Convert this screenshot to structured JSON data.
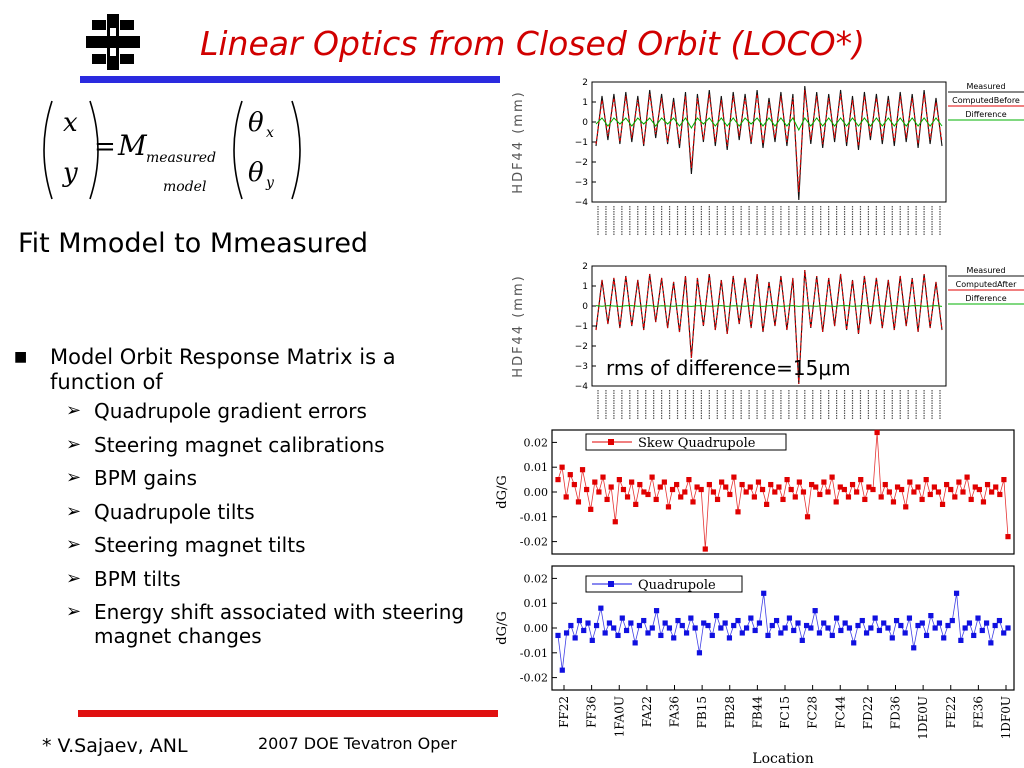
{
  "slide": {
    "title": "Linear Optics from Closed Orbit (LOCO*)",
    "equation": {
      "lhs_top": "x",
      "lhs_bottom": "y",
      "equals": "=",
      "matrix_symbol": "M",
      "subscript_top": "measured",
      "subscript_bottom": "model",
      "theta": "θ",
      "sub_x": "x",
      "sub_y": "y"
    },
    "fit_text": "Fit Mmodel to Mmeasured",
    "main_bullet": "Model Orbit Response Matrix is a function of",
    "sub_bullets": [
      "Quadrupole gradient errors",
      "Steering magnet calibrations",
      "BPM gains",
      "Quadrupole tilts",
      "Steering magnet tilts",
      "BPM tilts",
      "Energy shift associated with steering magnet changes"
    ],
    "footer_author": "* V.Sajaev, ANL",
    "footer_conference": "2007 DOE Tevatron Oper",
    "rms_text": "rms of difference=15μm",
    "colors": {
      "title": "#d00000",
      "top_rule": "#2a2adf",
      "bottom_rule": "#e01010",
      "red_series": "#e00000",
      "blue_series": "#1010e0",
      "green_series": "#00b000"
    }
  },
  "chart_data": [
    {
      "type": "line",
      "ylabel": "HDF44 (mm)",
      "ylim": [
        -4,
        2
      ],
      "yticks": [
        "2",
        "1",
        "0",
        "−1",
        "−2",
        "−3",
        "−4"
      ],
      "legend": [
        "Measured",
        "ComputedBefore",
        "Difference"
      ],
      "legend_position": "right",
      "series": [
        {
          "name": "Measured",
          "values": [
            -1.2,
            1.3,
            -0.9,
            1.4,
            -1.1,
            1.5,
            -1.0,
            1.3,
            -1.2,
            1.6,
            -0.8,
            1.4,
            -1.1,
            1.2,
            -1.3,
            1.5,
            -2.6,
            1.4,
            -1.0,
            1.6,
            -1.2,
            1.3,
            -1.4,
            1.5,
            -0.9,
            1.4,
            -1.1,
            1.6,
            -1.3,
            1.2,
            -1.0,
            1.5,
            -1.2,
            1.4,
            -3.9,
            1.8,
            -1.1,
            1.5,
            -1.3,
            1.4,
            -1.0,
            1.6,
            -1.2,
            1.3,
            -1.4,
            1.5,
            -0.9,
            1.4,
            -1.1,
            1.3,
            -1.2,
            1.5,
            -1.0,
            1.4,
            -1.3,
            1.6,
            -1.1,
            1.2,
            -1.2
          ]
        },
        {
          "name": "ComputedBefore",
          "values": [
            -1.1,
            1.1,
            -0.7,
            1.2,
            -1.0,
            1.3,
            -0.8,
            1.1,
            -1.1,
            1.4,
            -0.6,
            1.2,
            -1.0,
            1.0,
            -1.1,
            1.3,
            -2.3,
            1.2,
            -0.9,
            1.4,
            -1.0,
            1.1,
            -1.2,
            1.3,
            -0.7,
            1.2,
            -1.0,
            1.4,
            -1.1,
            1.0,
            -0.8,
            1.3,
            -1.0,
            1.2,
            -3.5,
            1.6,
            -0.9,
            1.3,
            -1.1,
            1.2,
            -0.8,
            1.4,
            -1.0,
            1.1,
            -1.2,
            1.3,
            -0.7,
            1.2,
            -0.9,
            1.1,
            -1.0,
            1.3,
            -0.8,
            1.2,
            -1.1,
            1.4,
            -0.9,
            1.0,
            -1.0
          ]
        },
        {
          "name": "Difference",
          "values": [
            -0.1,
            0.2,
            -0.2,
            0.2,
            -0.1,
            0.2,
            -0.2,
            0.2,
            -0.1,
            0.2,
            -0.2,
            0.2,
            -0.1,
            0.2,
            -0.2,
            0.2,
            -0.3,
            0.2,
            -0.1,
            0.2,
            -0.2,
            0.2,
            -0.2,
            0.2,
            -0.2,
            0.2,
            -0.1,
            0.2,
            -0.2,
            0.2,
            -0.2,
            0.2,
            -0.2,
            0.2,
            -0.4,
            0.2,
            -0.2,
            0.2,
            -0.2,
            0.2,
            -0.2,
            0.2,
            -0.2,
            0.2,
            -0.2,
            0.2,
            -0.2,
            0.2,
            -0.2,
            0.2,
            -0.2,
            0.2,
            -0.2,
            0.2,
            -0.2,
            0.2,
            -0.2,
            0.2,
            -0.2
          ]
        }
      ]
    },
    {
      "type": "line",
      "ylabel": "HDF44 (mm)",
      "ylim": [
        -4,
        2
      ],
      "yticks": [
        "2",
        "1",
        "0",
        "−1",
        "−2",
        "−3",
        "−4"
      ],
      "legend": [
        "Measured",
        "ComputedAfter",
        "Difference"
      ],
      "legend_position": "right",
      "series": [
        {
          "name": "Measured",
          "values": [
            -1.2,
            1.3,
            -0.9,
            1.4,
            -1.1,
            1.5,
            -1.0,
            1.3,
            -1.2,
            1.6,
            -0.8,
            1.4,
            -1.1,
            1.2,
            -1.3,
            1.5,
            -2.6,
            1.4,
            -1.0,
            1.6,
            -1.2,
            1.3,
            -1.4,
            1.5,
            -0.9,
            1.4,
            -1.1,
            1.6,
            -1.3,
            1.2,
            -1.0,
            1.5,
            -1.2,
            1.4,
            -3.9,
            1.8,
            -1.1,
            1.5,
            -1.3,
            1.4,
            -1.0,
            1.6,
            -1.2,
            1.3,
            -1.4,
            1.5,
            -0.9,
            1.4,
            -1.1,
            1.3,
            -1.2,
            1.5,
            -1.0,
            1.4,
            -1.3,
            1.6,
            -1.1,
            1.2,
            -1.2
          ]
        },
        {
          "name": "ComputedAfter",
          "values": [
            -1.2,
            1.3,
            -0.9,
            1.4,
            -1.1,
            1.5,
            -1.0,
            1.3,
            -1.2,
            1.6,
            -0.8,
            1.4,
            -1.1,
            1.2,
            -1.3,
            1.5,
            -2.6,
            1.4,
            -1.0,
            1.6,
            -1.2,
            1.3,
            -1.4,
            1.5,
            -0.9,
            1.4,
            -1.1,
            1.6,
            -1.3,
            1.2,
            -1.0,
            1.5,
            -1.2,
            1.4,
            -3.9,
            1.8,
            -1.1,
            1.5,
            -1.3,
            1.4,
            -1.0,
            1.6,
            -1.2,
            1.3,
            -1.4,
            1.5,
            -0.9,
            1.4,
            -1.1,
            1.3,
            -1.2,
            1.5,
            -1.0,
            1.4,
            -1.3,
            1.6,
            -1.1,
            1.2,
            -1.2
          ]
        },
        {
          "name": "Difference",
          "values": [
            0.02,
            -0.01,
            0.02,
            0.0,
            -0.02,
            0.01,
            0.02,
            -0.01,
            0.0,
            0.02,
            -0.02,
            0.01,
            0.0,
            -0.01,
            0.02,
            0.0,
            -0.02,
            0.01,
            0.02,
            -0.01,
            0.0,
            0.02,
            -0.02,
            0.01,
            0.0,
            -0.01,
            0.02,
            0.0,
            -0.02,
            0.01,
            0.02,
            -0.01,
            0.0,
            0.02,
            -0.02,
            0.01,
            0.0,
            -0.01,
            0.02,
            0.0,
            -0.02,
            0.01,
            0.02,
            -0.01,
            0.0,
            0.02,
            -0.02,
            0.01,
            0.0,
            -0.01,
            0.02,
            0.0,
            -0.02,
            0.01,
            0.02,
            -0.01,
            0.0,
            0.02,
            -0.02
          ]
        }
      ]
    },
    {
      "type": "scatter",
      "ylabel": "dG/G",
      "ylim": [
        -0.025,
        0.025
      ],
      "yticks": [
        "0.02",
        "0.01",
        "0.00",
        "-0.01",
        "-0.02"
      ],
      "legend": [
        "Skew Quadrupole"
      ],
      "series": [
        {
          "name": "Skew Quadrupole",
          "values": [
            0.005,
            0.01,
            -0.002,
            0.007,
            0.003,
            -0.004,
            0.009,
            0.001,
            -0.007,
            0.004,
            0.0,
            0.006,
            -0.003,
            0.002,
            -0.012,
            0.005,
            0.001,
            -0.002,
            0.004,
            -0.005,
            0.003,
            0.0,
            -0.001,
            0.006,
            -0.003,
            0.002,
            0.004,
            -0.006,
            0.001,
            0.003,
            -0.002,
            0.0,
            0.005,
            -0.004,
            0.002,
            0.001,
            -0.023,
            0.003,
            0.0,
            -0.003,
            0.004,
            0.002,
            -0.001,
            0.006,
            -0.008,
            0.003,
            0.0,
            0.002,
            -0.002,
            0.004,
            0.001,
            -0.005,
            0.003,
            0.0,
            0.002,
            -0.003,
            0.005,
            0.001,
            -0.002,
            0.004,
            0.0,
            -0.01,
            0.003,
            0.002,
            -0.001,
            0.004,
            0.0,
            0.006,
            -0.004,
            0.002,
            0.001,
            -0.002,
            0.003,
            0.0,
            0.005,
            -0.003,
            0.002,
            0.001,
            0.024,
            -0.002,
            0.003,
            0.0,
            -0.004,
            0.002,
            0.001,
            -0.006,
            0.004,
            0.0,
            0.002,
            -0.003,
            0.005,
            -0.001,
            0.002,
            0.0,
            -0.005,
            0.003,
            0.001,
            -0.002,
            0.004,
            0.0,
            0.006,
            -0.003,
            0.002,
            0.001,
            -0.004,
            0.003,
            0.0,
            0.002,
            -0.001,
            0.005,
            -0.018
          ]
        }
      ]
    },
    {
      "type": "scatter",
      "ylabel": "dG/G",
      "xlabel": "Location",
      "ylim": [
        -0.025,
        0.025
      ],
      "yticks": [
        "0.02",
        "0.01",
        "0.00",
        "-0.01",
        "-0.02"
      ],
      "legend": [
        "Quadrupole"
      ],
      "categories": [
        "FF22",
        "FF36",
        "1FA0U",
        "FA22",
        "FA36",
        "FB15",
        "FB28",
        "FB44",
        "FC15",
        "FC28",
        "FC44",
        "FD22",
        "FD36",
        "1DE0U",
        "FE22",
        "FE36",
        "1DF0U"
      ],
      "series": [
        {
          "name": "Quadrupole",
          "values": [
            -0.003,
            -0.017,
            -0.002,
            0.001,
            -0.004,
            0.003,
            -0.001,
            0.002,
            -0.005,
            0.001,
            0.008,
            -0.002,
            0.002,
            0.0,
            -0.003,
            0.004,
            -0.001,
            0.002,
            -0.006,
            0.001,
            0.003,
            -0.002,
            0.0,
            0.007,
            -0.003,
            0.002,
            0.0,
            -0.004,
            0.003,
            0.001,
            -0.002,
            0.004,
            0.0,
            -0.01,
            0.002,
            0.001,
            -0.003,
            0.005,
            0.0,
            0.002,
            -0.004,
            0.001,
            0.003,
            -0.002,
            0.0,
            0.004,
            -0.001,
            0.002,
            0.014,
            -0.003,
            0.001,
            0.003,
            -0.002,
            0.0,
            0.004,
            -0.001,
            0.002,
            -0.005,
            0.001,
            0.0,
            0.007,
            -0.002,
            0.002,
            0.0,
            -0.003,
            0.004,
            -0.001,
            0.002,
            0.0,
            -0.006,
            0.001,
            0.003,
            -0.002,
            0.0,
            0.004,
            -0.001,
            0.002,
            0.0,
            -0.004,
            0.003,
            0.001,
            -0.002,
            0.004,
            -0.008,
            0.001,
            0.002,
            -0.003,
            0.005,
            0.0,
            0.002,
            -0.004,
            0.001,
            0.003,
            0.014,
            -0.005,
            0.0,
            0.002,
            -0.003,
            0.004,
            -0.001,
            0.002,
            -0.006,
            0.001,
            0.003,
            -0.002,
            0.0
          ]
        }
      ]
    }
  ]
}
